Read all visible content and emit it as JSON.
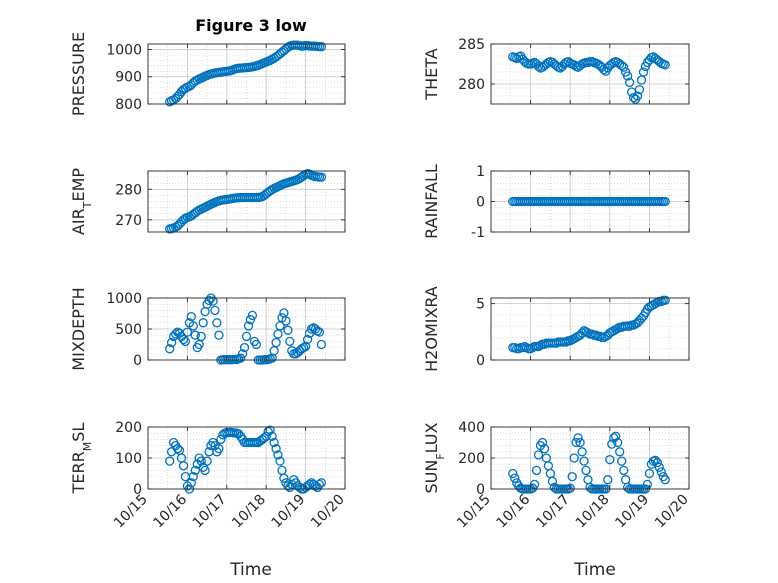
{
  "title": "Figure 3 low",
  "x_ticks": [
    "10/15",
    "10/16",
    "10/17",
    "10/18",
    "10/19",
    "10/20"
  ],
  "xlabel": "Time",
  "colors": {
    "marker": "#0072BD",
    "axis": "#262626",
    "grid": "#c8c8c8",
    "background": "#ffffff"
  },
  "chart_data": [
    {
      "type": "scatter",
      "ylabel": "PRESSURE",
      "ylim": [
        800,
        1020
      ],
      "yticks": [
        800,
        900,
        1000
      ],
      "xlim": [
        0,
        5
      ],
      "grid": true,
      "x": [
        0.55,
        0.6,
        0.65,
        0.7,
        0.75,
        0.8,
        0.85,
        0.9,
        0.95,
        1,
        1.05,
        1.1,
        1.15,
        1.2,
        1.25,
        1.3,
        1.35,
        1.4,
        1.45,
        1.5,
        1.55,
        1.6,
        1.65,
        1.7,
        1.75,
        1.8,
        1.85,
        1.9,
        1.95,
        2,
        2.05,
        2.1,
        2.15,
        2.2,
        2.25,
        2.3,
        2.35,
        2.4,
        2.45,
        2.5,
        2.55,
        2.6,
        2.65,
        2.7,
        2.75,
        2.8,
        2.85,
        2.9,
        2.95,
        3,
        3.05,
        3.1,
        3.15,
        3.2,
        3.25,
        3.3,
        3.35,
        3.4,
        3.45,
        3.5,
        3.55,
        3.6,
        3.65,
        3.7,
        3.75,
        3.8,
        3.85,
        3.9,
        3.95,
        4,
        4.05,
        4.1,
        4.15,
        4.2,
        4.25,
        4.3,
        4.35,
        4.4
      ],
      "y": [
        808,
        812,
        815,
        820,
        828,
        835,
        845,
        853,
        858,
        862,
        865,
        870,
        878,
        884,
        888,
        892,
        895,
        898,
        902,
        905,
        908,
        910,
        912,
        914,
        915,
        916,
        917,
        918,
        919,
        920,
        921,
        922,
        925,
        928,
        930,
        931,
        932,
        932,
        933,
        933,
        934,
        935,
        936,
        938,
        940,
        942,
        945,
        948,
        951,
        954,
        957,
        960,
        964,
        968,
        973,
        978,
        984,
        990,
        996,
        1002,
        1008,
        1012,
        1015,
        1016,
        1016,
        1016,
        1014,
        1012,
        1013,
        1015,
        1014,
        1013,
        1012,
        1012,
        1012,
        1011,
        1011,
        1010
      ]
    },
    {
      "type": "scatter",
      "ylabel": "THETA",
      "ylim": [
        277.5,
        285
      ],
      "yticks": [
        280,
        285
      ],
      "xlim": [
        0,
        5
      ],
      "grid": true,
      "x": [
        0.55,
        0.6,
        0.65,
        0.7,
        0.75,
        0.8,
        0.85,
        0.9,
        0.95,
        1,
        1.05,
        1.1,
        1.15,
        1.2,
        1.25,
        1.3,
        1.35,
        1.4,
        1.45,
        1.5,
        1.55,
        1.6,
        1.65,
        1.7,
        1.75,
        1.8,
        1.85,
        1.9,
        1.95,
        2,
        2.05,
        2.1,
        2.15,
        2.2,
        2.25,
        2.3,
        2.35,
        2.4,
        2.45,
        2.5,
        2.55,
        2.6,
        2.65,
        2.7,
        2.75,
        2.8,
        2.85,
        2.9,
        2.95,
        3,
        3.05,
        3.1,
        3.15,
        3.2,
        3.25,
        3.3,
        3.35,
        3.4,
        3.45,
        3.5,
        3.55,
        3.6,
        3.65,
        3.7,
        3.75,
        3.8,
        3.85,
        3.9,
        3.95,
        4,
        4.05,
        4.1,
        4.15,
        4.2,
        4.25,
        4.3,
        4.35,
        4.4
      ],
      "y": [
        283.4,
        283.3,
        283.2,
        283.4,
        283.5,
        283.1,
        282.8,
        282.6,
        282.5,
        282.5,
        282.6,
        282.7,
        282.5,
        282.2,
        282.0,
        282.1,
        282.3,
        282.5,
        282.7,
        282.8,
        282.7,
        282.5,
        282.3,
        282.1,
        282.0,
        282.2,
        282.5,
        282.7,
        282.8,
        282.6,
        282.5,
        282.4,
        282.2,
        282.1,
        282.3,
        282.5,
        282.6,
        282.7,
        282.7,
        282.8,
        282.8,
        282.7,
        282.6,
        282.5,
        282.3,
        282.1,
        281.8,
        281.6,
        282.0,
        282.3,
        282.5,
        282.7,
        282.8,
        282.7,
        282.5,
        282.3,
        282.1,
        281.5,
        281.0,
        280.2,
        279.0,
        278.3,
        278.1,
        278.5,
        279.3,
        280.5,
        281.5,
        282.2,
        282.7,
        283.0,
        283.3,
        283.4,
        283.2,
        283.0,
        282.8,
        282.6,
        282.5,
        282.4
      ]
    },
    {
      "type": "scatter",
      "ylabel": "AIR_TEMP",
      "ylim": [
        266,
        286
      ],
      "yticks": [
        270,
        280
      ],
      "xlim": [
        0,
        5
      ],
      "grid": true,
      "x": [
        0.55,
        0.6,
        0.65,
        0.7,
        0.75,
        0.8,
        0.85,
        0.9,
        0.95,
        1,
        1.05,
        1.1,
        1.15,
        1.2,
        1.25,
        1.3,
        1.35,
        1.4,
        1.45,
        1.5,
        1.55,
        1.6,
        1.65,
        1.7,
        1.75,
        1.8,
        1.85,
        1.9,
        1.95,
        2,
        2.05,
        2.1,
        2.15,
        2.2,
        2.25,
        2.3,
        2.35,
        2.4,
        2.45,
        2.5,
        2.55,
        2.6,
        2.65,
        2.7,
        2.75,
        2.8,
        2.85,
        2.9,
        2.95,
        3,
        3.05,
        3.1,
        3.15,
        3.2,
        3.25,
        3.3,
        3.35,
        3.4,
        3.45,
        3.5,
        3.55,
        3.6,
        3.65,
        3.7,
        3.75,
        3.8,
        3.85,
        3.9,
        3.95,
        4,
        4.05,
        4.1,
        4.15,
        4.2,
        4.25,
        4.3,
        4.35,
        4.4
      ],
      "y": [
        267.0,
        267.1,
        267.3,
        267.6,
        268.0,
        268.6,
        269.3,
        270.0,
        270.5,
        270.8,
        271.0,
        271.3,
        271.8,
        272.3,
        272.8,
        273.2,
        273.5,
        273.8,
        274.1,
        274.5,
        274.8,
        275.1,
        275.4,
        275.7,
        276.0,
        276.2,
        276.4,
        276.5,
        276.6,
        276.7,
        276.8,
        276.9,
        277.0,
        277.1,
        277.2,
        277.2,
        277.3,
        277.3,
        277.3,
        277.3,
        277.3,
        277.3,
        277.3,
        277.3,
        277.3,
        277.3,
        277.4,
        277.6,
        278.0,
        278.5,
        279.0,
        279.5,
        279.9,
        280.3,
        280.6,
        280.9,
        281.2,
        281.5,
        281.8,
        282.0,
        282.2,
        282.4,
        282.6,
        282.8,
        283.0,
        283.2,
        283.6,
        284.0,
        284.5,
        284.9,
        285.1,
        285.0,
        284.6,
        284.3,
        284.2,
        284.1,
        284.0,
        284.0
      ]
    },
    {
      "type": "scatter",
      "ylabel": "RAINFALL",
      "ylim": [
        -1,
        1
      ],
      "yticks": [
        -1,
        0,
        1
      ],
      "xlim": [
        0,
        5
      ],
      "grid": true,
      "x": [
        0.55,
        0.6,
        0.65,
        0.7,
        0.75,
        0.8,
        0.85,
        0.9,
        0.95,
        1,
        1.05,
        1.1,
        1.15,
        1.2,
        1.25,
        1.3,
        1.35,
        1.4,
        1.45,
        1.5,
        1.55,
        1.6,
        1.65,
        1.7,
        1.75,
        1.8,
        1.85,
        1.9,
        1.95,
        2,
        2.05,
        2.1,
        2.15,
        2.2,
        2.25,
        2.3,
        2.35,
        2.4,
        2.45,
        2.5,
        2.55,
        2.6,
        2.65,
        2.7,
        2.75,
        2.8,
        2.85,
        2.9,
        2.95,
        3,
        3.05,
        3.1,
        3.15,
        3.2,
        3.25,
        3.3,
        3.35,
        3.4,
        3.45,
        3.5,
        3.55,
        3.6,
        3.65,
        3.7,
        3.75,
        3.8,
        3.85,
        3.9,
        3.95,
        4,
        4.05,
        4.1,
        4.15,
        4.2,
        4.25,
        4.3,
        4.35,
        4.4
      ],
      "y": [
        0,
        0,
        0,
        0,
        0,
        0,
        0,
        0,
        0,
        0,
        0,
        0,
        0,
        0,
        0,
        0,
        0,
        0,
        0,
        0,
        0,
        0,
        0,
        0,
        0,
        0,
        0,
        0,
        0,
        0,
        0,
        0,
        0,
        0,
        0,
        0,
        0,
        0,
        0,
        0,
        0,
        0,
        0,
        0,
        0,
        0,
        0,
        0,
        0,
        0,
        0,
        0,
        0,
        0,
        0,
        0,
        0,
        0,
        0,
        0,
        0,
        0,
        0,
        0,
        0,
        0,
        0,
        0,
        0,
        0,
        0,
        0,
        0,
        0,
        0,
        0,
        0,
        0
      ]
    },
    {
      "type": "scatter",
      "ylabel": "MIXDEPTH",
      "ylim": [
        0,
        1000
      ],
      "yticks": [
        0,
        500,
        1000
      ],
      "xlim": [
        0,
        5
      ],
      "grid": true,
      "x": [
        0.55,
        0.6,
        0.65,
        0.7,
        0.75,
        0.8,
        0.85,
        0.9,
        0.95,
        1,
        1.05,
        1.1,
        1.15,
        1.2,
        1.25,
        1.3,
        1.35,
        1.4,
        1.45,
        1.5,
        1.55,
        1.6,
        1.65,
        1.7,
        1.75,
        1.8,
        1.85,
        1.9,
        1.95,
        2,
        2.05,
        2.1,
        2.15,
        2.2,
        2.25,
        2.3,
        2.35,
        2.4,
        2.45,
        2.5,
        2.55,
        2.6,
        2.65,
        2.7,
        2.75,
        2.8,
        2.85,
        2.9,
        2.95,
        3,
        3.05,
        3.1,
        3.15,
        3.2,
        3.25,
        3.3,
        3.35,
        3.4,
        3.45,
        3.5,
        3.55,
        3.6,
        3.65,
        3.7,
        3.75,
        3.8,
        3.85,
        3.9,
        3.95,
        4,
        4.05,
        4.1,
        4.15,
        4.2,
        4.25,
        4.3,
        4.35,
        4.4
      ],
      "y": [
        180,
        280,
        380,
        420,
        450,
        430,
        380,
        330,
        300,
        450,
        600,
        700,
        550,
        400,
        200,
        250,
        380,
        600,
        780,
        900,
        960,
        1000,
        950,
        800,
        600,
        400,
        0,
        5,
        5,
        5,
        5,
        5,
        5,
        10,
        10,
        20,
        30,
        100,
        200,
        380,
        550,
        650,
        720,
        300,
        250,
        0,
        0,
        0,
        5,
        5,
        10,
        20,
        30,
        150,
        280,
        420,
        550,
        680,
        760,
        630,
        480,
        300,
        150,
        100,
        100,
        120,
        150,
        180,
        200,
        220,
        330,
        430,
        500,
        520,
        500,
        470,
        450,
        250
      ]
    },
    {
      "type": "scatter",
      "ylabel": "H2OMIXRA",
      "ylim": [
        0,
        5.5
      ],
      "yticks": [
        0,
        5
      ],
      "xlim": [
        0,
        5
      ],
      "grid": true,
      "x": [
        0.55,
        0.6,
        0.65,
        0.7,
        0.75,
        0.8,
        0.85,
        0.9,
        0.95,
        1,
        1.05,
        1.1,
        1.15,
        1.2,
        1.25,
        1.3,
        1.35,
        1.4,
        1.45,
        1.5,
        1.55,
        1.6,
        1.65,
        1.7,
        1.75,
        1.8,
        1.85,
        1.9,
        1.95,
        2,
        2.05,
        2.1,
        2.15,
        2.2,
        2.25,
        2.3,
        2.35,
        2.4,
        2.45,
        2.5,
        2.55,
        2.6,
        2.65,
        2.7,
        2.75,
        2.8,
        2.85,
        2.9,
        2.95,
        3,
        3.05,
        3.1,
        3.15,
        3.2,
        3.25,
        3.3,
        3.35,
        3.4,
        3.45,
        3.5,
        3.55,
        3.6,
        3.65,
        3.7,
        3.75,
        3.8,
        3.85,
        3.9,
        3.95,
        4,
        4.05,
        4.1,
        4.15,
        4.2,
        4.25,
        4.3,
        4.35,
        4.4
      ],
      "y": [
        1.1,
        1.1,
        1.0,
        1.0,
        1.1,
        1.1,
        1.2,
        1.1,
        1.0,
        1.0,
        1.1,
        1.2,
        1.2,
        1.2,
        1.3,
        1.4,
        1.4,
        1.5,
        1.5,
        1.5,
        1.5,
        1.5,
        1.5,
        1.6,
        1.6,
        1.6,
        1.6,
        1.6,
        1.7,
        1.7,
        1.8,
        1.9,
        2.0,
        2.1,
        2.2,
        2.4,
        2.6,
        2.5,
        2.4,
        2.3,
        2.3,
        2.2,
        2.2,
        2.1,
        2.1,
        2.0,
        2.0,
        2.1,
        2.2,
        2.4,
        2.5,
        2.6,
        2.7,
        2.8,
        2.9,
        2.9,
        3.0,
        3.0,
        3.0,
        3.0,
        3.1,
        3.1,
        3.2,
        3.3,
        3.5,
        3.7,
        3.9,
        4.2,
        4.5,
        4.7,
        4.8,
        4.9,
        5.0,
        5.1,
        5.2,
        5.2,
        5.3,
        5.3
      ]
    },
    {
      "type": "scatter",
      "ylabel": "TERR_MSL",
      "ylim": [
        0,
        200
      ],
      "yticks": [
        0,
        100,
        200
      ],
      "xlim": [
        0,
        5
      ],
      "grid": true,
      "x": [
        0.55,
        0.6,
        0.65,
        0.7,
        0.75,
        0.8,
        0.85,
        0.9,
        0.95,
        1,
        1.05,
        1.1,
        1.15,
        1.2,
        1.25,
        1.3,
        1.35,
        1.4,
        1.45,
        1.5,
        1.55,
        1.6,
        1.65,
        1.7,
        1.75,
        1.8,
        1.85,
        1.9,
        1.95,
        2,
        2.05,
        2.1,
        2.15,
        2.2,
        2.25,
        2.3,
        2.35,
        2.4,
        2.45,
        2.5,
        2.55,
        2.6,
        2.65,
        2.7,
        2.75,
        2.8,
        2.85,
        2.9,
        2.95,
        3,
        3.05,
        3.1,
        3.15,
        3.2,
        3.25,
        3.3,
        3.35,
        3.4,
        3.45,
        3.5,
        3.55,
        3.6,
        3.65,
        3.7,
        3.75,
        3.8,
        3.85,
        3.9,
        3.95,
        4,
        4.05,
        4.1,
        4.15,
        4.2,
        4.25,
        4.3,
        4.35,
        4.4
      ],
      "y": [
        90,
        120,
        150,
        140,
        130,
        125,
        100,
        75,
        40,
        10,
        0,
        20,
        40,
        60,
        80,
        100,
        90,
        70,
        60,
        90,
        120,
        140,
        150,
        140,
        120,
        130,
        160,
        175,
        180,
        182,
        182,
        183,
        182,
        181,
        180,
        178,
        170,
        160,
        150,
        150,
        150,
        150,
        150,
        150,
        150,
        150,
        155,
        160,
        165,
        170,
        185,
        190,
        170,
        150,
        130,
        110,
        90,
        60,
        35,
        20,
        10,
        5,
        15,
        30,
        20,
        10,
        5,
        0,
        0,
        5,
        10,
        15,
        20,
        15,
        10,
        5,
        15,
        20
      ]
    },
    {
      "type": "scatter",
      "ylabel": "SUN_FLUX",
      "ylim": [
        0,
        400
      ],
      "yticks": [
        0,
        200,
        400
      ],
      "xlim": [
        0,
        5
      ],
      "grid": true,
      "x": [
        0.55,
        0.6,
        0.65,
        0.7,
        0.75,
        0.8,
        0.85,
        0.9,
        0.95,
        1,
        1.05,
        1.1,
        1.15,
        1.2,
        1.25,
        1.3,
        1.35,
        1.4,
        1.45,
        1.5,
        1.55,
        1.6,
        1.65,
        1.7,
        1.75,
        1.8,
        1.85,
        1.9,
        1.95,
        2,
        2.05,
        2.1,
        2.15,
        2.2,
        2.25,
        2.3,
        2.35,
        2.4,
        2.45,
        2.5,
        2.55,
        2.6,
        2.65,
        2.7,
        2.75,
        2.8,
        2.85,
        2.9,
        2.95,
        3,
        3.05,
        3.1,
        3.15,
        3.2,
        3.25,
        3.3,
        3.35,
        3.4,
        3.45,
        3.5,
        3.55,
        3.6,
        3.65,
        3.7,
        3.75,
        3.8,
        3.85,
        3.9,
        3.95,
        4,
        4.05,
        4.1,
        4.15,
        4.2,
        4.25,
        4.3,
        4.35,
        4.4
      ],
      "y": [
        100,
        70,
        40,
        20,
        5,
        0,
        0,
        0,
        0,
        0,
        5,
        30,
        120,
        220,
        280,
        300,
        260,
        200,
        150,
        100,
        50,
        10,
        0,
        0,
        0,
        0,
        0,
        0,
        0,
        5,
        80,
        200,
        300,
        330,
        300,
        240,
        180,
        120,
        60,
        10,
        0,
        0,
        0,
        0,
        0,
        0,
        0,
        0,
        60,
        190,
        290,
        330,
        340,
        300,
        240,
        180,
        120,
        60,
        10,
        0,
        0,
        0,
        0,
        0,
        0,
        0,
        0,
        0,
        30,
        100,
        160,
        180,
        185,
        170,
        140,
        110,
        80,
        60
      ]
    }
  ]
}
